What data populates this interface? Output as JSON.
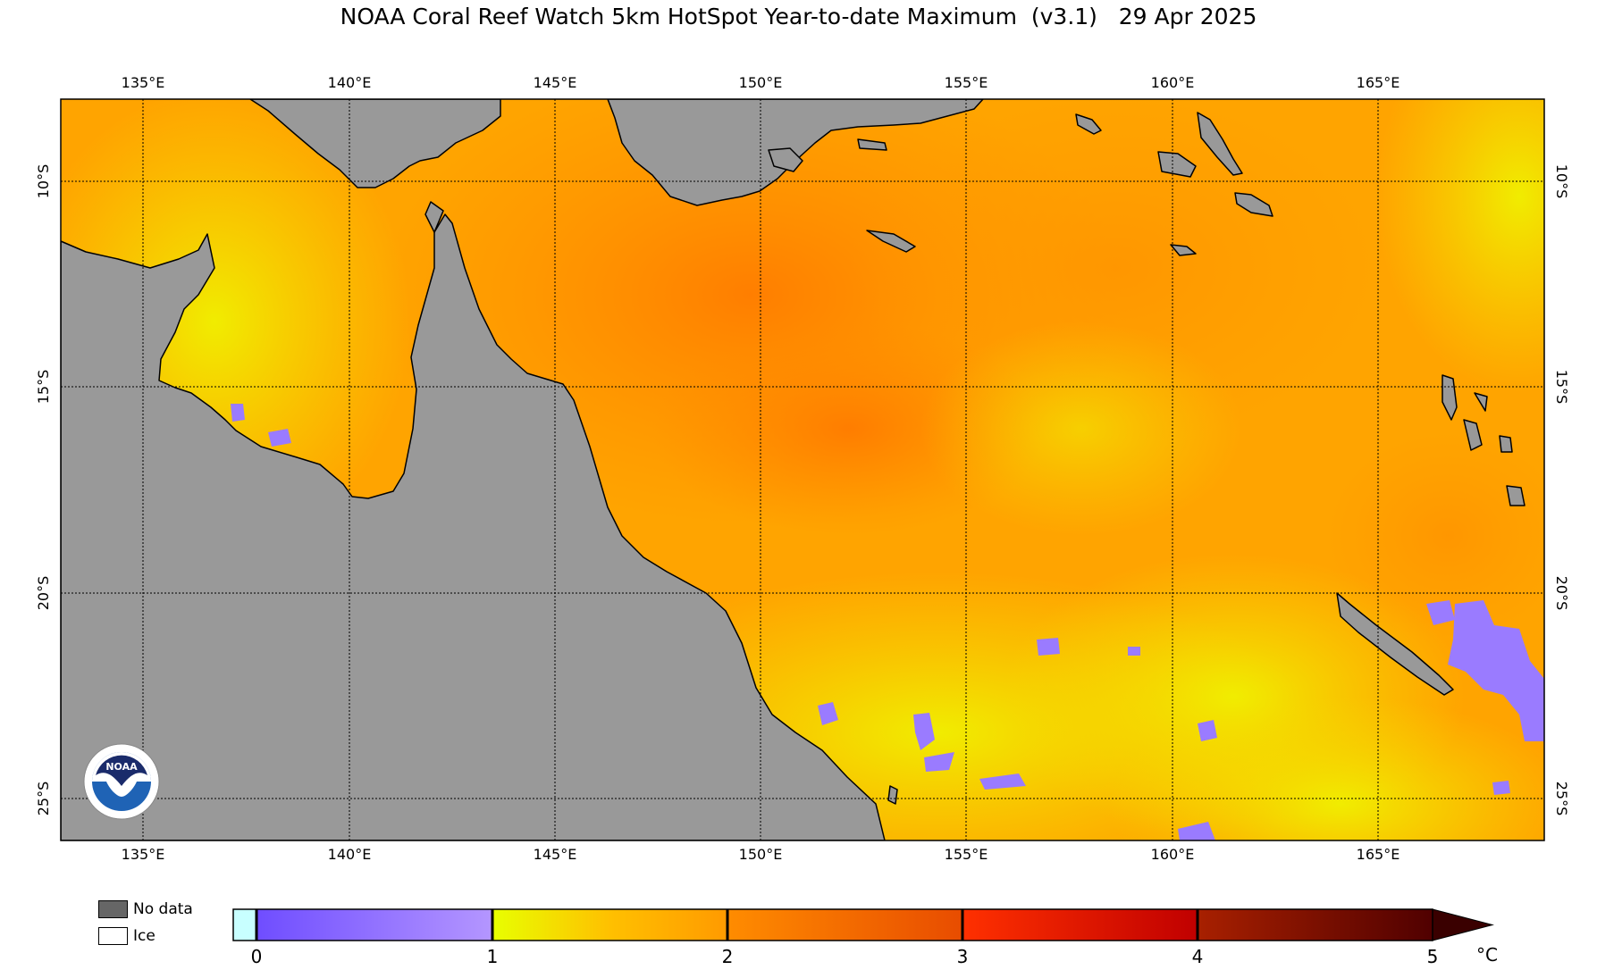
{
  "title": "NOAA Coral Reef Watch 5km HotSpot Year-to-date Maximum  (v3.1)   29 Apr 2025",
  "map": {
    "lon_labels": [
      "135°E",
      "140°E",
      "145°E",
      "150°E",
      "155°E",
      "160°E",
      "165°E"
    ],
    "lat_labels": [
      "10°S",
      "15°S",
      "20°S",
      "25°S"
    ],
    "colors": {
      "land": "#999999",
      "coastline": "#000000",
      "ocean_warm": "#ff8a00",
      "ocean_mid": "#ffb000",
      "ocean_cool": "#f2f200",
      "low_anomaly": "#9a7bff"
    }
  },
  "legend": {
    "no_data_label": "No data",
    "ice_label": "Ice",
    "no_data_color": "#666666",
    "ice_color": "#ffffff",
    "ticks": [
      "0",
      "1",
      "2",
      "3",
      "4",
      "5"
    ],
    "unit": "°C"
  },
  "logo": {
    "text": "NOAA"
  }
}
